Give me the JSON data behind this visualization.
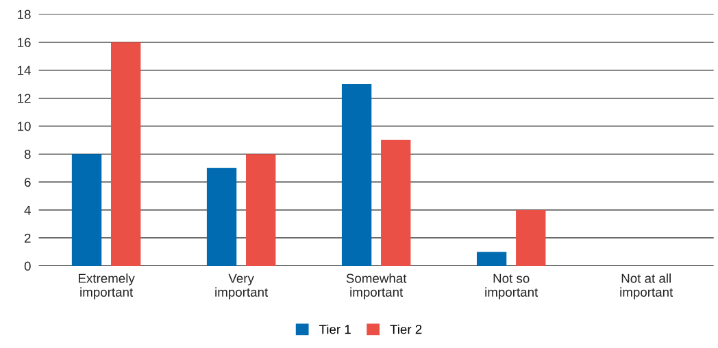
{
  "chart_data": {
    "type": "bar",
    "categories": [
      "Extremely important",
      "Very important",
      "Somewhat important",
      "Not so important",
      "Not at all important"
    ],
    "series": [
      {
        "name": "Tier 1",
        "color": "#006bb1",
        "values": [
          8,
          7,
          13,
          1,
          0
        ]
      },
      {
        "name": "Tier 2",
        "color": "#ea5046",
        "values": [
          16,
          8,
          9,
          4,
          0
        ]
      }
    ],
    "ylim": [
      0,
      18
    ],
    "yticks": [
      0,
      2,
      4,
      6,
      8,
      10,
      12,
      14,
      16,
      18
    ],
    "grid": "y",
    "legend": "bottom"
  }
}
